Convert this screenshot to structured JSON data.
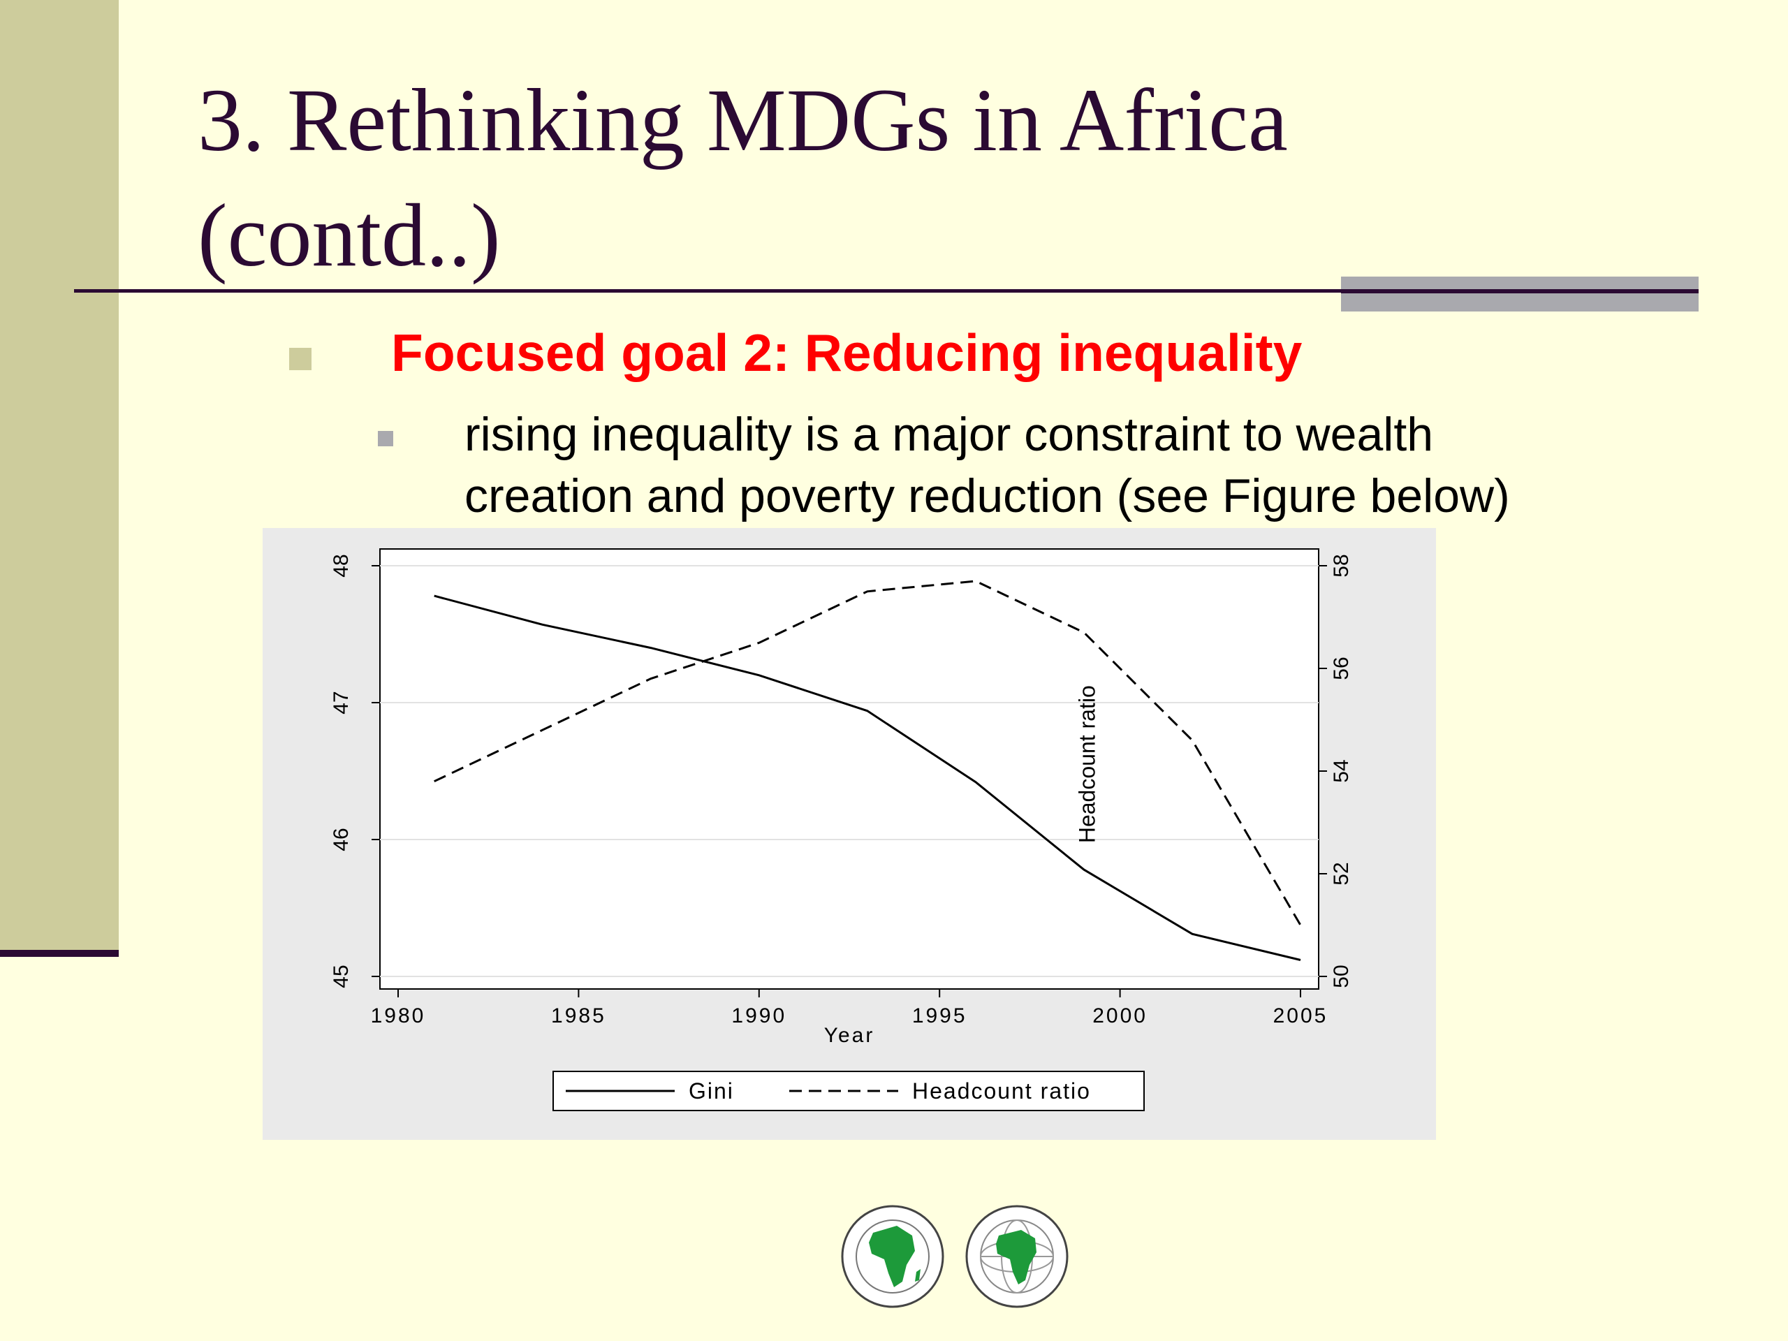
{
  "slide": {
    "title_line1": "3. Rethinking MDGs in Africa",
    "title_line2": "(contd..)",
    "bullet": "Focused goal 2: Reducing inequality",
    "sub_line1": "rising inequality is a major constraint to wealth",
    "sub_line2": "creation and poverty reduction (see Figure below)",
    "colors": {
      "title": "#2b0a33",
      "goal": "#ff0000",
      "band": "#cdcc9c",
      "background": "#ffffe0"
    },
    "logo_icons": [
      "african-development-bank-logo-icon",
      "african-development-fund-logo-icon"
    ]
  },
  "chart_data": {
    "type": "line",
    "xlabel": "Year",
    "x_ticks": [
      1980,
      1985,
      1990,
      1995,
      2000,
      2005
    ],
    "xlim": [
      1980,
      2005
    ],
    "y_left": {
      "ticks": [
        45,
        46,
        47,
        48
      ],
      "lim": [
        45,
        48
      ]
    },
    "y_right": {
      "ticks": [
        50,
        52,
        54,
        56,
        58
      ],
      "lim": [
        50,
        58
      ]
    },
    "grid": true,
    "legend_position": "bottom",
    "annotation": "Headcount ratio",
    "series": [
      {
        "name": "Gini",
        "axis": "left",
        "style": "solid",
        "points": [
          [
            1981,
            47.78
          ],
          [
            1984,
            47.57
          ],
          [
            1987,
            47.4
          ],
          [
            1990,
            47.2
          ],
          [
            1993,
            46.94
          ],
          [
            1996,
            46.42
          ],
          [
            1999,
            45.78
          ],
          [
            2002,
            45.31
          ],
          [
            2005,
            45.12
          ]
        ]
      },
      {
        "name": "Headcount ratio",
        "axis": "right",
        "style": "dashed",
        "points": [
          [
            1981,
            53.8
          ],
          [
            1984,
            54.8
          ],
          [
            1987,
            55.8
          ],
          [
            1990,
            56.5
          ],
          [
            1993,
            57.5
          ],
          [
            1996,
            57.7
          ],
          [
            1999,
            56.7
          ],
          [
            2002,
            54.6
          ],
          [
            2005,
            51.0
          ]
        ]
      }
    ]
  }
}
